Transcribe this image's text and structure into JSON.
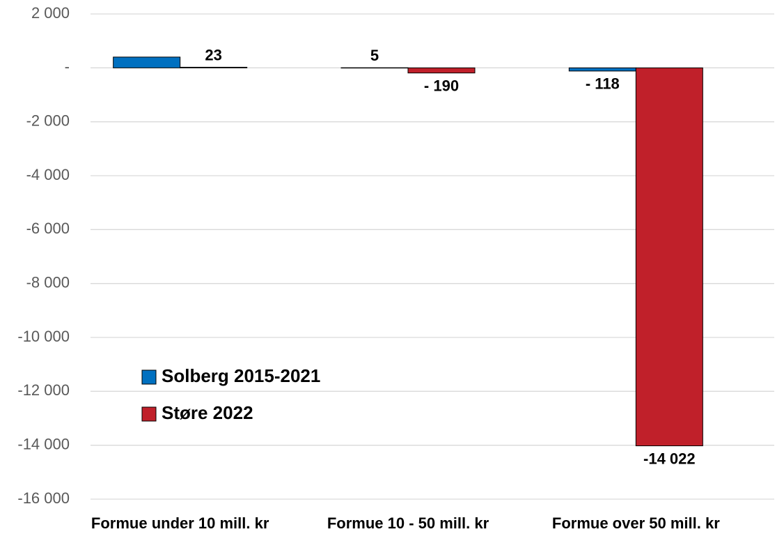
{
  "chart_data": {
    "type": "bar",
    "categories": [
      "Formue under 10 mill. kr",
      "Formue 10 - 50 mill. kr",
      "Formue over 50 mill. kr"
    ],
    "series": [
      {
        "name": "Solberg 2015-2021",
        "color": "#0070c0",
        "values": [
          400,
          5,
          -118
        ],
        "value_labels": [
          null,
          "5",
          "- 118"
        ]
      },
      {
        "name": "Støre 2022",
        "color": "#c0202a",
        "values": [
          23,
          -190,
          -14022
        ],
        "value_labels": [
          "23",
          "- 190",
          "-14 022"
        ]
      }
    ],
    "ylim": [
      -16000,
      2000
    ],
    "yticks": [
      {
        "value": 2000,
        "label": "2 000"
      },
      {
        "value": 0,
        "label": "-"
      },
      {
        "value": -2000,
        "label": "-2 000"
      },
      {
        "value": -4000,
        "label": "-4 000"
      },
      {
        "value": -6000,
        "label": "-6 000"
      },
      {
        "value": -8000,
        "label": "-8 000"
      },
      {
        "value": -10000,
        "label": "-10 000"
      },
      {
        "value": -12000,
        "label": "-12 000"
      },
      {
        "value": -14000,
        "label": "-14 000"
      },
      {
        "value": -16000,
        "label": "-16 000"
      }
    ],
    "grid": true
  }
}
